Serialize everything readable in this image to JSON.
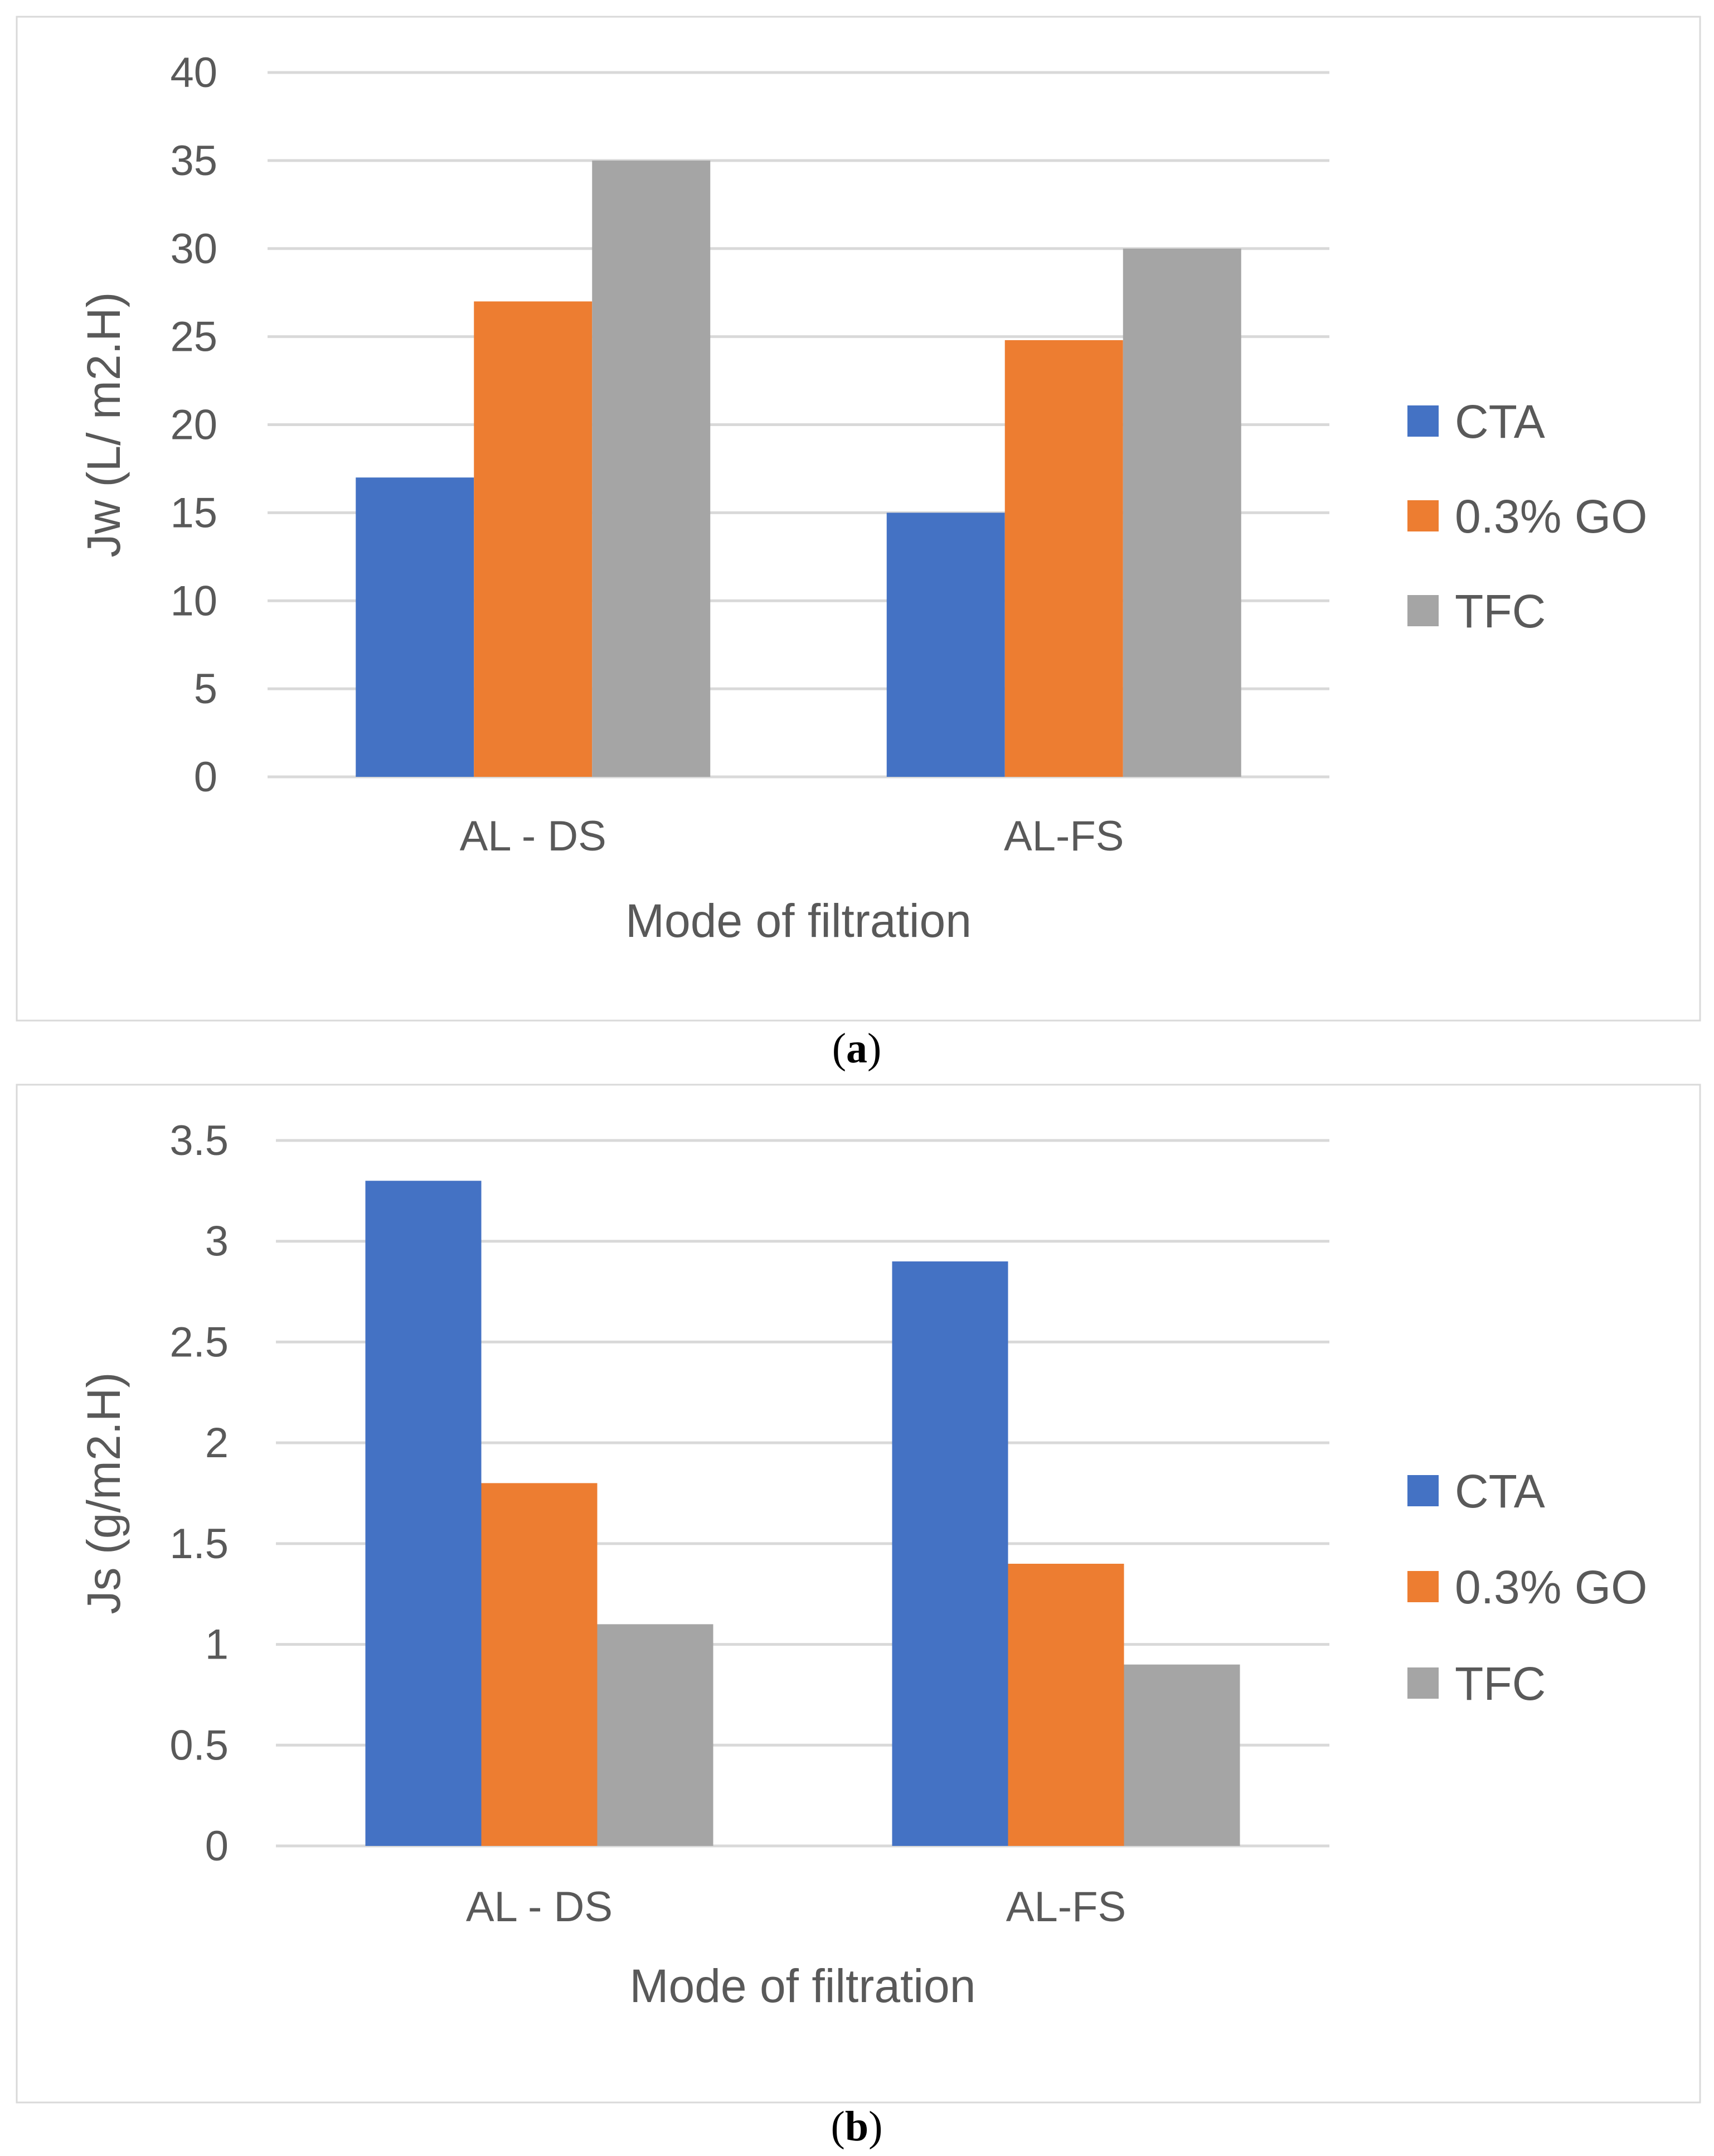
{
  "colors": {
    "CTA": "#4472C4",
    "0.3% GO": "#ED7D31",
    "TFC": "#A5A5A5"
  },
  "chart_data": [
    {
      "type": "bar",
      "panel": "a",
      "caption": {
        "open": "(",
        "letter": "a",
        "close": ")"
      },
      "categories": [
        "AL - DS",
        "AL-FS"
      ],
      "series": [
        {
          "name": "CTA",
          "values": [
            17,
            15
          ]
        },
        {
          "name": "0.3% GO",
          "values": [
            27,
            24.8
          ]
        },
        {
          "name": "TFC",
          "values": [
            35,
            30
          ]
        }
      ],
      "xlabel": "Mode of filtration",
      "ylabel": "Jw (L/ m2.H)",
      "ylim": [
        0,
        40
      ],
      "yticks": [
        0,
        5,
        10,
        15,
        20,
        25,
        30,
        35,
        40
      ],
      "ytick_labels": [
        "0",
        "5",
        "10",
        "15",
        "20",
        "25",
        "30",
        "35",
        "40"
      ],
      "grid": true,
      "legend": "right"
    },
    {
      "type": "bar",
      "panel": "b",
      "caption": {
        "open": "(",
        "letter": "b",
        "close": ")"
      },
      "categories": [
        "AL - DS",
        "AL-FS"
      ],
      "series": [
        {
          "name": "CTA",
          "values": [
            3.3,
            2.9
          ]
        },
        {
          "name": "0.3% GO",
          "values": [
            1.8,
            1.4
          ]
        },
        {
          "name": "TFC",
          "values": [
            1.1,
            0.9
          ]
        }
      ],
      "xlabel": "Mode of filtration",
      "ylabel": "Js (g/m2.H)",
      "ylim": [
        0,
        3.5
      ],
      "yticks": [
        0,
        0.5,
        1,
        1.5,
        2,
        2.5,
        3,
        3.5
      ],
      "ytick_labels": [
        "0",
        "0.5",
        "1",
        "1.5",
        "2",
        "2.5",
        "3",
        "3.5"
      ],
      "grid": true,
      "legend": "right"
    }
  ]
}
